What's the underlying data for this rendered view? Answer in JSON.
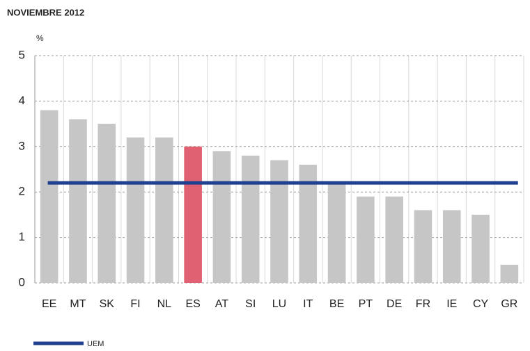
{
  "chart_data": {
    "type": "bar",
    "title": "NOVIEMBRE 2012",
    "y_label": "%",
    "categories": [
      "EE",
      "MT",
      "SK",
      "FI",
      "NL",
      "ES",
      "AT",
      "SI",
      "LU",
      "IT",
      "BE",
      "PT",
      "DE",
      "FR",
      "IE",
      "CY",
      "GR"
    ],
    "values": [
      3.8,
      3.6,
      3.5,
      3.2,
      3.2,
      3.0,
      2.9,
      2.8,
      2.7,
      2.6,
      2.2,
      1.9,
      1.9,
      1.6,
      1.6,
      1.5,
      0.4
    ],
    "colors": [
      "#c6c6c6",
      "#c6c6c6",
      "#c6c6c6",
      "#c6c6c6",
      "#c6c6c6",
      "#e06272",
      "#c6c6c6",
      "#c6c6c6",
      "#c6c6c6",
      "#c6c6c6",
      "#c6c6c6",
      "#c6c6c6",
      "#c6c6c6",
      "#c6c6c6",
      "#c6c6c6",
      "#c6c6c6",
      "#c6c6c6"
    ],
    "reference_line": {
      "name": "UEM",
      "value": 2.2,
      "color": "#1f3f8f"
    },
    "ylim": [
      0,
      5
    ],
    "yticks": [
      0,
      1,
      2,
      3,
      4,
      5
    ],
    "grid": true
  }
}
